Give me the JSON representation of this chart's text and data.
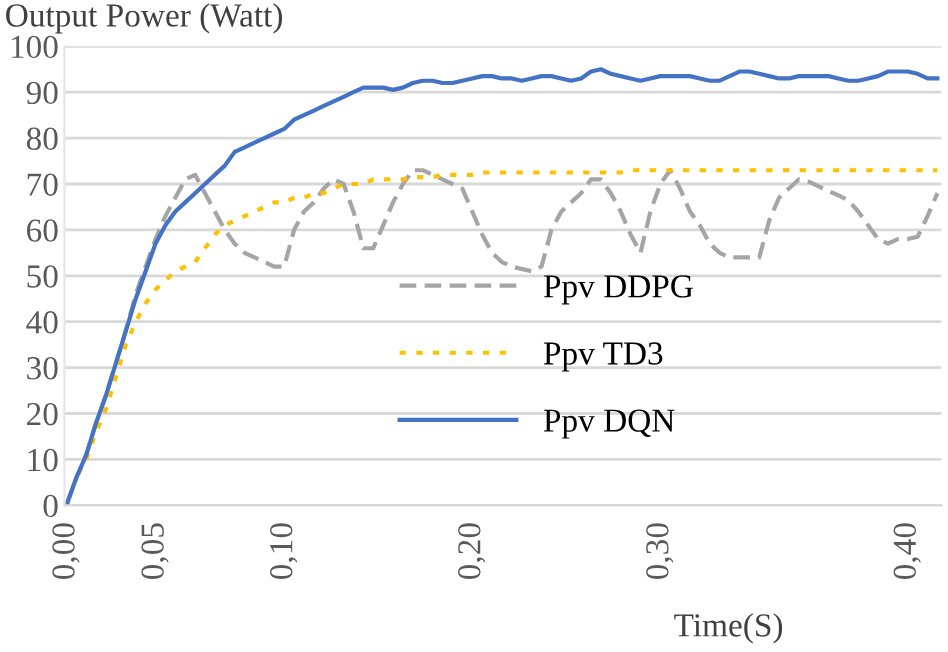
{
  "chart_data": {
    "type": "line",
    "ylabel": "Output Power (Watt)",
    "xlabel": "Time(S)",
    "categories": [
      "0,00",
      null,
      null,
      null,
      null,
      null,
      null,
      null,
      null,
      "0,05",
      null,
      null,
      null,
      null,
      null,
      null,
      null,
      null,
      null,
      null,
      null,
      null,
      "0,10",
      null,
      null,
      null,
      null,
      null,
      null,
      null,
      null,
      null,
      null,
      null,
      null,
      null,
      null,
      null,
      null,
      null,
      null,
      "0,20",
      null,
      null,
      null,
      null,
      null,
      null,
      null,
      null,
      null,
      null,
      null,
      null,
      null,
      null,
      null,
      null,
      null,
      null,
      "0,30",
      null,
      null,
      null,
      null,
      null,
      null,
      null,
      null,
      null,
      null,
      null,
      null,
      null,
      null,
      null,
      null,
      null,
      null,
      null,
      null,
      null,
      null,
      null,
      null,
      "0,40",
      null,
      null,
      null
    ],
    "series": [
      {
        "name": "Ppv DDPG",
        "color": "#a5a5a5",
        "line_style": "dashed",
        "values": [
          0,
          6,
          11,
          18,
          24,
          31,
          38,
          46,
          52,
          58,
          63,
          67,
          71,
          72,
          68,
          64,
          60,
          57,
          55,
          54,
          53,
          52,
          52,
          60,
          64,
          66,
          69,
          71,
          70,
          64,
          56,
          56,
          61,
          66,
          70,
          73,
          73,
          72,
          71,
          70,
          69,
          64,
          59,
          55,
          53,
          52,
          51.5,
          51,
          52,
          60,
          64,
          66,
          68,
          71,
          71,
          68,
          64,
          59,
          55,
          64,
          70,
          73,
          69,
          64,
          61,
          57,
          55,
          54,
          54,
          54,
          54,
          62,
          67,
          69,
          71,
          70.5,
          69.5,
          68.5,
          67.5,
          66.5,
          64,
          61,
          58,
          57,
          58,
          58,
          58.5,
          63,
          68
        ]
      },
      {
        "name": "Ppv TD3",
        "color": "#ffc000",
        "line_style": "dotted",
        "values": [
          0,
          6,
          10,
          16,
          21,
          28,
          35,
          40,
          44,
          47,
          49,
          51,
          52,
          53,
          56,
          59,
          61,
          62,
          63,
          64,
          65,
          66,
          66,
          67,
          67,
          68,
          68,
          69,
          70,
          70,
          70,
          71,
          71,
          71,
          71,
          71.5,
          71.5,
          71.5,
          72,
          72,
          72,
          72,
          72.5,
          72.5,
          72.5,
          72.5,
          72.5,
          72.5,
          72.5,
          72.5,
          72.5,
          72.5,
          72.5,
          72.5,
          72.5,
          72.5,
          72.5,
          73,
          73,
          73,
          73,
          73,
          73,
          73,
          73,
          73,
          73,
          73,
          73,
          73,
          73,
          73,
          73,
          73,
          73,
          73,
          73,
          73,
          73,
          73,
          73,
          73,
          73,
          73,
          73,
          73,
          73,
          73,
          73
        ]
      },
      {
        "name": "Ppv DQN",
        "color": "#4472c4",
        "line_style": "solid",
        "values": [
          0,
          6,
          11,
          18,
          24,
          31,
          38,
          45,
          51,
          57,
          61,
          64,
          66,
          68,
          70,
          72,
          74,
          77,
          78,
          79,
          80,
          81,
          82,
          84,
          85,
          86,
          87,
          88,
          89,
          90,
          91,
          91,
          91,
          90.5,
          91,
          92,
          92.5,
          92.5,
          92,
          92,
          92.5,
          93,
          93.5,
          93.5,
          93,
          93,
          92.5,
          93,
          93.5,
          93.5,
          93,
          92.5,
          93,
          94.5,
          95,
          94,
          93.5,
          93,
          92.5,
          93,
          93.5,
          93.5,
          93.5,
          93.5,
          93,
          92.5,
          92.5,
          93.5,
          94.5,
          94.5,
          94,
          93.5,
          93,
          93,
          93.5,
          93.5,
          93.5,
          93.5,
          93,
          92.5,
          92.5,
          93,
          93.5,
          94.5,
          94.5,
          94.5,
          94,
          93,
          93
        ]
      }
    ],
    "ylim": [
      0,
      100
    ],
    "yticks": [
      0,
      10,
      20,
      30,
      40,
      50,
      60,
      70,
      80,
      90,
      100
    ],
    "grid": "y",
    "legend": "bottom"
  }
}
